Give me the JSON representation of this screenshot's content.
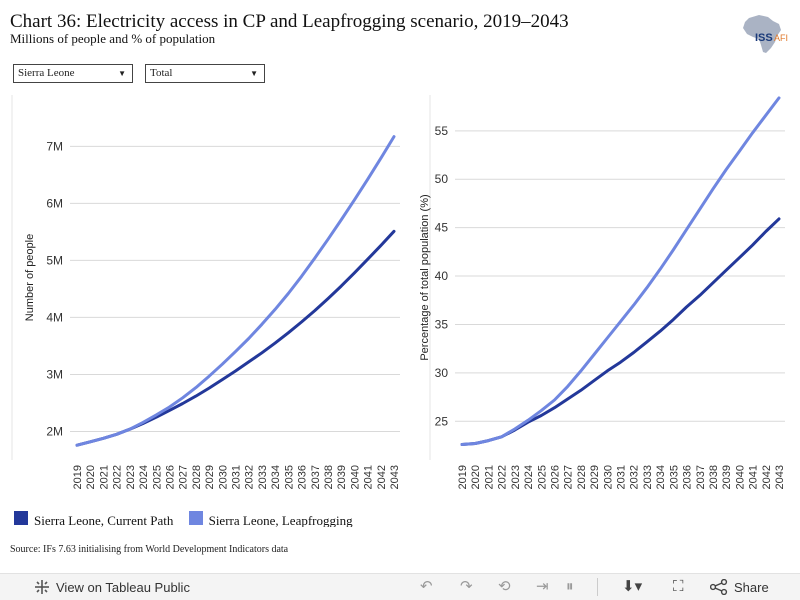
{
  "header": {
    "title": "Chart 36: Electricity access in CP and Leapfrogging scenario, 2019–2043",
    "subtitle": "Millions of people and % of population"
  },
  "logo": {
    "text": "ISS",
    "suffix": "AFI",
    "colors": {
      "map": "#aab3c4",
      "iss": "#1a3a7a",
      "afi": "#e07a2c"
    }
  },
  "filters": {
    "country": "Sierra Leone",
    "measure": "Total"
  },
  "colors": {
    "current_path": "#23389a",
    "leapfrogging": "#6f86e0",
    "grid": "#d9d9d9"
  },
  "chart_data": [
    {
      "type": "line",
      "ylabel": "Number of people",
      "x": [
        "2019",
        "2020",
        "2021",
        "2022",
        "2023",
        "2024",
        "2025",
        "2026",
        "2027",
        "2028",
        "2029",
        "2030",
        "2031",
        "2032",
        "2033",
        "2034",
        "2035",
        "2036",
        "2037",
        "2038",
        "2039",
        "2040",
        "2041",
        "2042",
        "2043"
      ],
      "yticks": [
        2,
        3,
        4,
        5,
        6,
        7
      ],
      "ytick_labels": [
        "2M",
        "3M",
        "4M",
        "5M",
        "6M",
        "7M"
      ],
      "ylim": [
        1.5,
        7.9
      ],
      "grid": true,
      "series": [
        {
          "name": "Sierra Leone, Current Path",
          "values": [
            1.76,
            1.82,
            1.88,
            1.95,
            2.04,
            2.14,
            2.25,
            2.37,
            2.49,
            2.62,
            2.76,
            2.91,
            3.06,
            3.22,
            3.38,
            3.55,
            3.73,
            3.92,
            4.12,
            4.33,
            4.55,
            4.78,
            5.02,
            5.26,
            5.51
          ]
        },
        {
          "name": "Sierra Leone, Leapfrogging",
          "values": [
            1.76,
            1.82,
            1.88,
            1.95,
            2.04,
            2.16,
            2.29,
            2.43,
            2.59,
            2.77,
            2.97,
            3.18,
            3.4,
            3.63,
            3.88,
            4.14,
            4.42,
            4.72,
            5.04,
            5.37,
            5.71,
            6.06,
            6.42,
            6.79,
            7.17
          ]
        }
      ]
    },
    {
      "type": "line",
      "ylabel": "Percentage of total population (%)",
      "x": [
        "2019",
        "2020",
        "2021",
        "2022",
        "2023",
        "2024",
        "2025",
        "2026",
        "2027",
        "2028",
        "2029",
        "2030",
        "2031",
        "2032",
        "2033",
        "2034",
        "2035",
        "2036",
        "2037",
        "2038",
        "2039",
        "2040",
        "2041",
        "2042",
        "2043"
      ],
      "yticks": [
        25,
        30,
        35,
        40,
        45,
        50,
        55
      ],
      "ytick_labels": [
        "25",
        "30",
        "35",
        "40",
        "45",
        "50",
        "55"
      ],
      "ylim": [
        21,
        58.7
      ],
      "grid": true,
      "series": [
        {
          "name": "Sierra Leone, Current Path",
          "values": [
            22.6,
            22.7,
            23.0,
            23.4,
            24.1,
            24.9,
            25.6,
            26.4,
            27.3,
            28.2,
            29.2,
            30.2,
            31.1,
            32.1,
            33.2,
            34.3,
            35.5,
            36.8,
            38.0,
            39.3,
            40.6,
            41.9,
            43.2,
            44.6,
            45.9
          ]
        },
        {
          "name": "Sierra Leone, Leapfrogging",
          "values": [
            22.6,
            22.7,
            23.0,
            23.4,
            24.2,
            25.1,
            26.1,
            27.2,
            28.6,
            30.2,
            31.9,
            33.6,
            35.3,
            37.0,
            38.8,
            40.7,
            42.7,
            44.8,
            46.9,
            49.0,
            51.0,
            52.9,
            54.8,
            56.6,
            58.4
          ]
        }
      ]
    }
  ],
  "legend": {
    "items": [
      "Sierra Leone, Current Path",
      "Sierra Leone, Leapfrogging"
    ]
  },
  "source": "Source: IFs 7.63 initialising from World Development Indicators data",
  "footer": {
    "view_label": "View on Tableau Public",
    "share_label": "Share"
  }
}
